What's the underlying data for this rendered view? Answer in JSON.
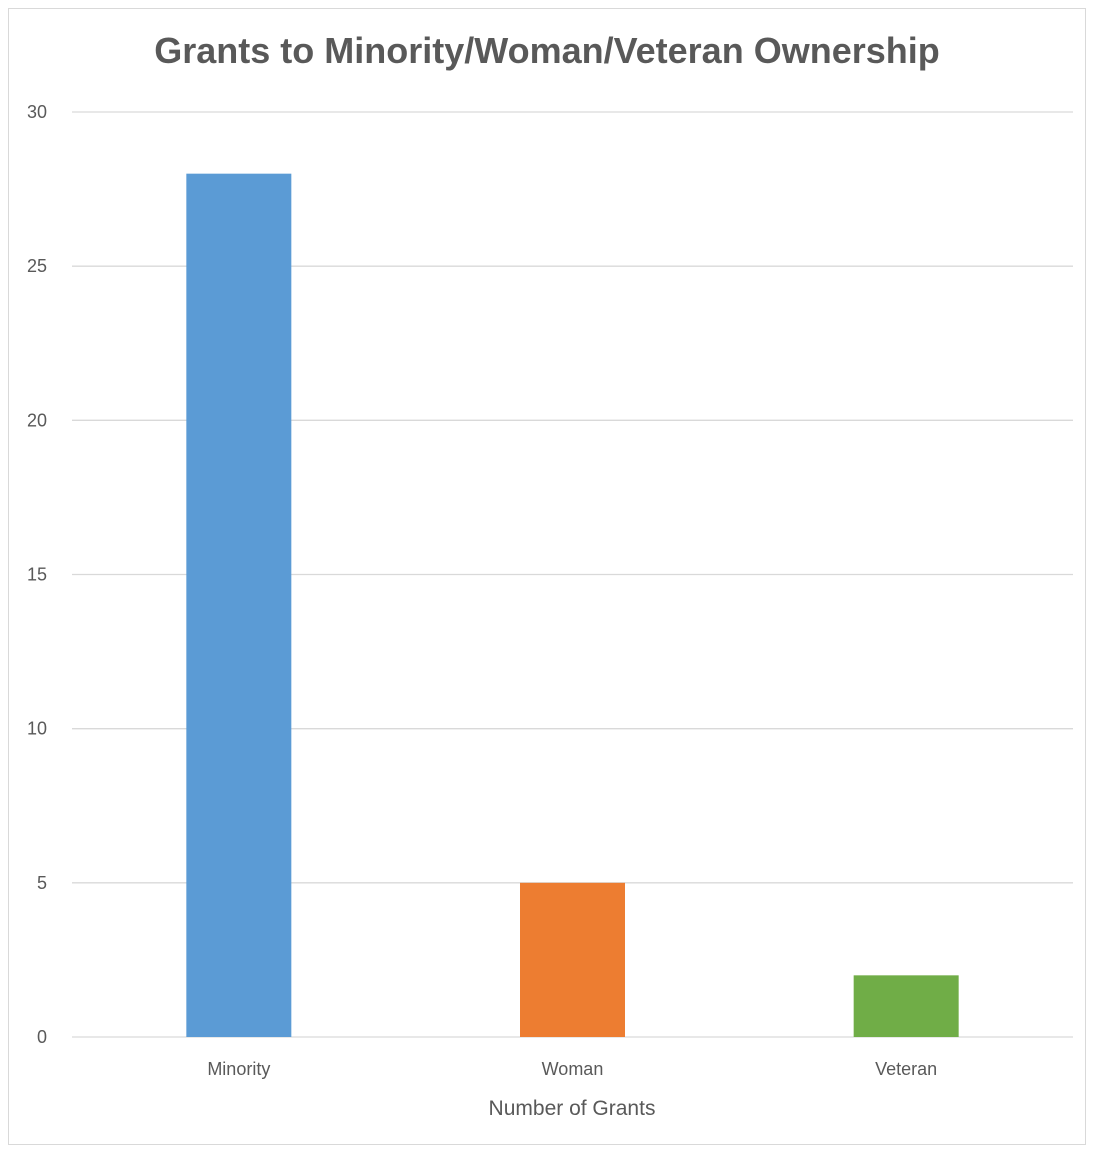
{
  "chart_data": {
    "type": "bar",
    "title": "Grants to Minority/Woman/Veteran Ownership",
    "xlabel": "Number of Grants",
    "ylabel": "",
    "categories": [
      "Minority",
      "Woman",
      "Veteran"
    ],
    "values": [
      28,
      5,
      2
    ],
    "ylim": [
      0,
      30
    ],
    "yticks": [
      "0",
      "5",
      "10",
      "15",
      "20",
      "25",
      "30"
    ],
    "grid": true,
    "legend": "none",
    "colors": [
      "#5B9BD5",
      "#ED7D31",
      "#70AD47"
    ],
    "gridline_color": "#d9d9d9"
  }
}
